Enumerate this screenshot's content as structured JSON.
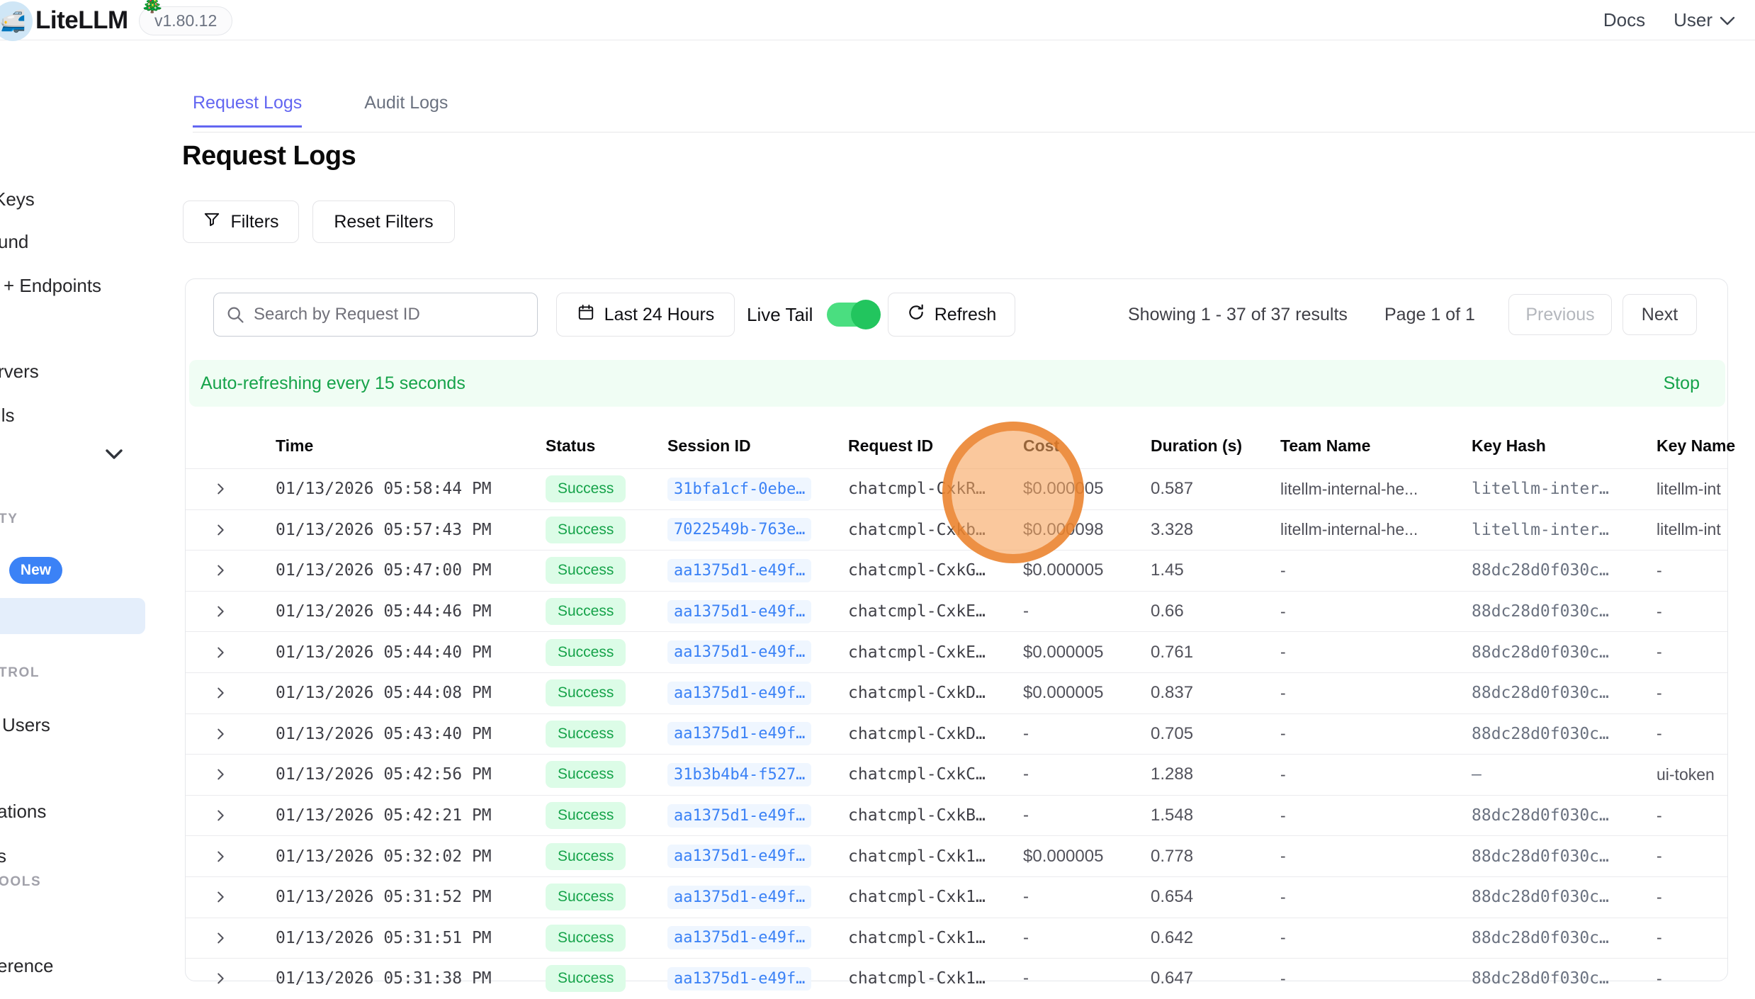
{
  "nav": {
    "logo_emoji": "🚅",
    "brand": "LiteLLM",
    "festive_emoji": "🎄",
    "version": "v1.80.12",
    "docs_label": "Docs",
    "user_label": "User"
  },
  "sidebar": {
    "fragments": [
      "Keys",
      "und",
      "+ Endpoints",
      "rvers",
      "ils",
      "TY",
      "New",
      "TROL",
      "Users",
      "ations",
      "s",
      "OOLS",
      "erence"
    ]
  },
  "tabs": {
    "items": [
      {
        "label": "Request Logs",
        "active": true
      },
      {
        "label": "Audit Logs",
        "active": false
      }
    ]
  },
  "page": {
    "title": "Request Logs",
    "filters_label": "Filters",
    "reset_filters_label": "Reset Filters"
  },
  "toolbar": {
    "search_placeholder": "Search by Request ID",
    "time_range": "Last 24 Hours",
    "live_tail_label": "Live Tail",
    "live_tail_on": true,
    "refresh_label": "Refresh",
    "results_summary": "Showing 1 - 37 of 37 results",
    "page_indicator": "Page 1 of 1",
    "previous_label": "Previous",
    "next_label": "Next"
  },
  "banner": {
    "message": "Auto-refreshing every 15 seconds",
    "action": "Stop"
  },
  "table": {
    "columns": [
      "Time",
      "Status",
      "Session ID",
      "Request ID",
      "Cost",
      "Duration (s)",
      "Team Name",
      "Key Hash",
      "Key Name"
    ],
    "rows": [
      {
        "time": "01/13/2026 05:58:44 PM",
        "status": "Success",
        "session": "31bfa1cf-0ebe…",
        "request": "chatcmpl-CxkR…",
        "cost": "$0.000005",
        "duration": "0.587",
        "team": "litellm-internal-he...",
        "key_hash": "litellm-inter…",
        "key_name": "litellm-int"
      },
      {
        "time": "01/13/2026 05:57:43 PM",
        "status": "Success",
        "session": "7022549b-763e…",
        "request": "chatcmpl-Cxkb…",
        "cost": "$0.000098",
        "duration": "3.328",
        "team": "litellm-internal-he...",
        "key_hash": "litellm-inter…",
        "key_name": "litellm-int"
      },
      {
        "time": "01/13/2026 05:47:00 PM",
        "status": "Success",
        "session": "aa1375d1-e49f…",
        "request": "chatcmpl-CxkG…",
        "cost": "$0.000005",
        "duration": "1.45",
        "team": "-",
        "key_hash": "88dc28d0f030c…",
        "key_name": "-"
      },
      {
        "time": "01/13/2026 05:44:46 PM",
        "status": "Success",
        "session": "aa1375d1-e49f…",
        "request": "chatcmpl-CxkE…",
        "cost": "-",
        "duration": "0.66",
        "team": "-",
        "key_hash": "88dc28d0f030c…",
        "key_name": "-"
      },
      {
        "time": "01/13/2026 05:44:40 PM",
        "status": "Success",
        "session": "aa1375d1-e49f…",
        "request": "chatcmpl-CxkE…",
        "cost": "$0.000005",
        "duration": "0.761",
        "team": "-",
        "key_hash": "88dc28d0f030c…",
        "key_name": "-"
      },
      {
        "time": "01/13/2026 05:44:08 PM",
        "status": "Success",
        "session": "aa1375d1-e49f…",
        "request": "chatcmpl-CxkD…",
        "cost": "$0.000005",
        "duration": "0.837",
        "team": "-",
        "key_hash": "88dc28d0f030c…",
        "key_name": "-"
      },
      {
        "time": "01/13/2026 05:43:40 PM",
        "status": "Success",
        "session": "aa1375d1-e49f…",
        "request": "chatcmpl-CxkD…",
        "cost": "-",
        "duration": "0.705",
        "team": "-",
        "key_hash": "88dc28d0f030c…",
        "key_name": "-"
      },
      {
        "time": "01/13/2026 05:42:56 PM",
        "status": "Success",
        "session": "31b3b4b4-f527…",
        "request": "chatcmpl-CxkC…",
        "cost": "-",
        "duration": "1.288",
        "team": "-",
        "key_hash": "–",
        "key_name": "ui-token"
      },
      {
        "time": "01/13/2026 05:42:21 PM",
        "status": "Success",
        "session": "aa1375d1-e49f…",
        "request": "chatcmpl-CxkB…",
        "cost": "-",
        "duration": "1.548",
        "team": "-",
        "key_hash": "88dc28d0f030c…",
        "key_name": "-"
      },
      {
        "time": "01/13/2026 05:32:02 PM",
        "status": "Success",
        "session": "aa1375d1-e49f…",
        "request": "chatcmpl-Cxk1…",
        "cost": "$0.000005",
        "duration": "0.778",
        "team": "-",
        "key_hash": "88dc28d0f030c…",
        "key_name": "-"
      },
      {
        "time": "01/13/2026 05:31:52 PM",
        "status": "Success",
        "session": "aa1375d1-e49f…",
        "request": "chatcmpl-Cxk1…",
        "cost": "-",
        "duration": "0.654",
        "team": "-",
        "key_hash": "88dc28d0f030c…",
        "key_name": "-"
      },
      {
        "time": "01/13/2026 05:31:51 PM",
        "status": "Success",
        "session": "aa1375d1-e49f…",
        "request": "chatcmpl-Cxk1…",
        "cost": "-",
        "duration": "0.642",
        "team": "-",
        "key_hash": "88dc28d0f030c…",
        "key_name": "-"
      },
      {
        "time": "01/13/2026 05:31:38 PM",
        "status": "Success",
        "session": "aa1375d1-e49f…",
        "request": "chatcmpl-Cxk1…",
        "cost": "-",
        "duration": "0.647",
        "team": "-",
        "key_hash": "88dc28d0f030c…",
        "key_name": "-"
      }
    ]
  },
  "colors": {
    "accent_indigo": "#6366f1",
    "success_bg": "#dcfce7",
    "success_text": "#16a34a",
    "banner_bg": "#f0fdf4",
    "session_link": "#3b82f6",
    "toggle_on": "#22c55e",
    "new_badge": "#3b82f6",
    "sidebar_highlight": "#e4eefb",
    "click_indicator": "#e97b22"
  }
}
